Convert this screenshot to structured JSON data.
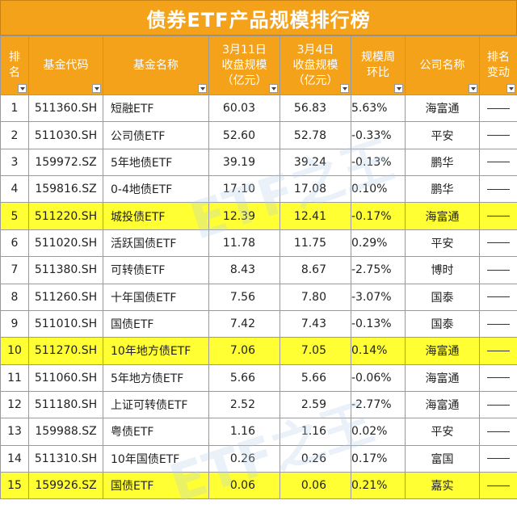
{
  "title": "债券ETF产品规模排行榜",
  "headers": [
    {
      "key": "rank",
      "label": "排\n名"
    },
    {
      "key": "code",
      "label": "基金代码"
    },
    {
      "key": "name",
      "label": "基金名称"
    },
    {
      "key": "cur",
      "label": "3月11日\n收盘规模\n（亿元）"
    },
    {
      "key": "prev",
      "label": "3月4日\n收盘规模\n（亿元）"
    },
    {
      "key": "chg",
      "label": "规模周\n环比"
    },
    {
      "key": "company",
      "label": "公司名称"
    },
    {
      "key": "move",
      "label": "排名\n变动"
    }
  ],
  "rows": [
    {
      "rank": "1",
      "code": "511360.SH",
      "name": "短融ETF",
      "cur": "60.03",
      "prev": "56.83",
      "chg": "5.63%",
      "company": "海富通",
      "highlight": false
    },
    {
      "rank": "2",
      "code": "511030.SH",
      "name": "公司债ETF",
      "cur": "52.60",
      "prev": "52.78",
      "chg": "-0.33%",
      "company": "平安",
      "highlight": false
    },
    {
      "rank": "3",
      "code": "159972.SZ",
      "name": "5年地债ETF",
      "cur": "39.19",
      "prev": "39.24",
      "chg": "-0.13%",
      "company": "鹏华",
      "highlight": false
    },
    {
      "rank": "4",
      "code": "159816.SZ",
      "name": "0-4地债ETF",
      "cur": "17.10",
      "prev": "17.08",
      "chg": "0.10%",
      "company": "鹏华",
      "highlight": false
    },
    {
      "rank": "5",
      "code": "511220.SH",
      "name": "城投债ETF",
      "cur": "12.39",
      "prev": "12.41",
      "chg": "-0.17%",
      "company": "海富通",
      "highlight": true
    },
    {
      "rank": "6",
      "code": "511020.SH",
      "name": "活跃国债ETF",
      "cur": "11.78",
      "prev": "11.75",
      "chg": "0.29%",
      "company": "平安",
      "highlight": false
    },
    {
      "rank": "7",
      "code": "511380.SH",
      "name": "可转债ETF",
      "cur": "8.43",
      "prev": "8.67",
      "chg": "-2.75%",
      "company": "博时",
      "highlight": false
    },
    {
      "rank": "8",
      "code": "511260.SH",
      "name": "十年国债ETF",
      "cur": "7.56",
      "prev": "7.80",
      "chg": "-3.07%",
      "company": "国泰",
      "highlight": false
    },
    {
      "rank": "9",
      "code": "511010.SH",
      "name": "国债ETF",
      "cur": "7.42",
      "prev": "7.43",
      "chg": "-0.13%",
      "company": "国泰",
      "highlight": false
    },
    {
      "rank": "10",
      "code": "511270.SH",
      "name": "10年地方债ETF",
      "cur": "7.06",
      "prev": "7.05",
      "chg": "0.14%",
      "company": "海富通",
      "highlight": true
    },
    {
      "rank": "11",
      "code": "511060.SH",
      "name": "5年地方债ETF",
      "cur": "5.66",
      "prev": "5.66",
      "chg": "-0.06%",
      "company": "海富通",
      "highlight": false
    },
    {
      "rank": "12",
      "code": "511180.SH",
      "name": "上证可转债ETF",
      "cur": "2.52",
      "prev": "2.59",
      "chg": "-2.77%",
      "company": "海富通",
      "highlight": false
    },
    {
      "rank": "13",
      "code": "159988.SZ",
      "name": "粤债ETF",
      "cur": "1.16",
      "prev": "1.16",
      "chg": "0.02%",
      "company": "平安",
      "highlight": false
    },
    {
      "rank": "14",
      "code": "511310.SH",
      "name": "10年国债ETF",
      "cur": "0.26",
      "prev": "0.26",
      "chg": "0.17%",
      "company": "富国",
      "highlight": false
    },
    {
      "rank": "15",
      "code": "159926.SZ",
      "name": "国债ETF",
      "cur": "0.06",
      "prev": "0.06",
      "chg": "0.21%",
      "company": "嘉实",
      "highlight": true
    }
  ],
  "watermark": [
    "ETF之王",
    "ETF之王"
  ],
  "colors": {
    "header_bg": "#f5a21b",
    "highlight": "#ffff33",
    "header_text": "#ffffff"
  }
}
